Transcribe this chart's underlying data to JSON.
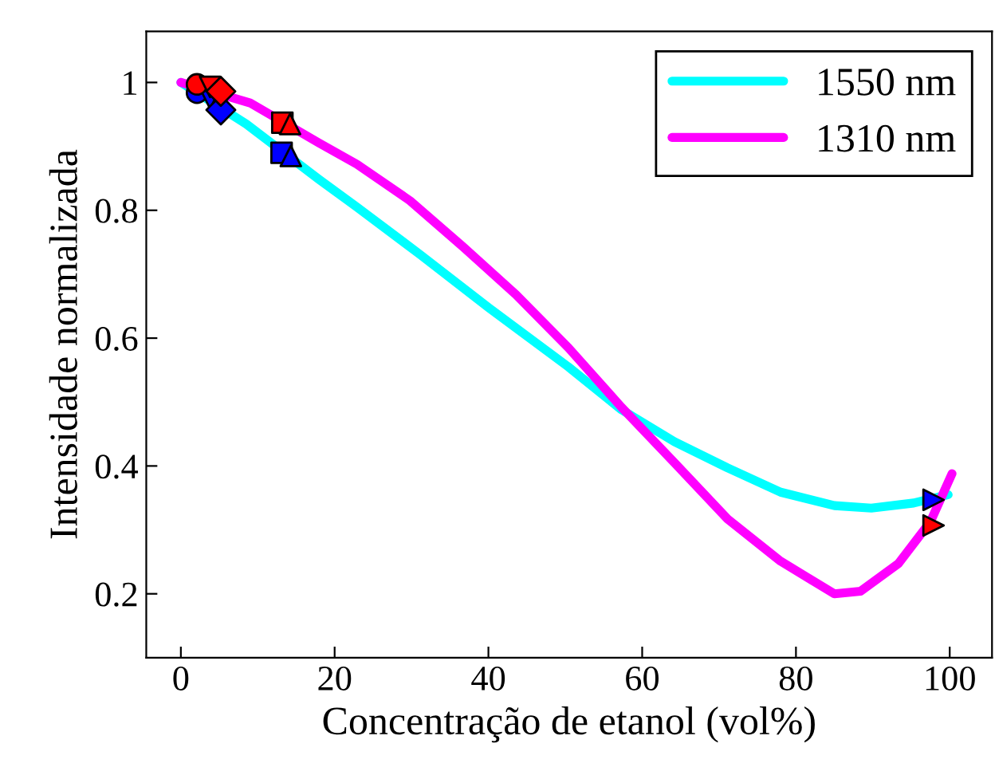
{
  "chart_data": {
    "type": "line",
    "xlabel": "Concentração de etanol (vol%)",
    "ylabel": "Intensidade normalizada",
    "xlim": [
      -4.5,
      105.5
    ],
    "ylim": [
      0.1,
      1.08
    ],
    "xticks": [
      0,
      20,
      40,
      60,
      80,
      100
    ],
    "yticks": [
      0.2,
      0.4,
      0.6,
      0.8,
      1
    ],
    "grid": false,
    "legend": "top right",
    "series": [
      {
        "name": "1550 nm",
        "color": "#00ffff",
        "x": [
          0,
          8.5,
          18,
          22.9,
          31.2,
          40.1,
          50.4,
          57.3,
          64.2,
          71.1,
          78,
          85,
          89.8,
          95.3,
          99.8
        ],
        "values": [
          1.0,
          0.935,
          0.848,
          0.805,
          0.73,
          0.647,
          0.555,
          0.488,
          0.438,
          0.397,
          0.359,
          0.338,
          0.334,
          0.342,
          0.355
        ]
      },
      {
        "name": "1310 nm",
        "color": "#ff00ff",
        "x": [
          0,
          9,
          18,
          22.9,
          29.8,
          36.7,
          43.6,
          50.4,
          57.3,
          64.2,
          71.1,
          78,
          85,
          88.4,
          93.3,
          97.5,
          100.3
        ],
        "values": [
          1.0,
          0.968,
          0.905,
          0.872,
          0.815,
          0.743,
          0.668,
          0.585,
          0.492,
          0.405,
          0.317,
          0.251,
          0.2,
          0.204,
          0.247,
          0.313,
          0.388
        ]
      },
      {
        "type": "scatter",
        "marker": "circle",
        "color": "#0000ff",
        "x": [
          2.1
        ],
        "values": [
          0.984
        ]
      },
      {
        "type": "scatter",
        "marker": "triangle-down",
        "color": "#0000ff",
        "x": [
          3.8
        ],
        "values": [
          0.975
        ]
      },
      {
        "type": "scatter",
        "marker": "diamond",
        "color": "#0000ff",
        "x": [
          5.2
        ],
        "values": [
          0.957
        ]
      },
      {
        "type": "scatter",
        "marker": "square",
        "color": "#0000ff",
        "x": [
          13.1
        ],
        "values": [
          0.89
        ]
      },
      {
        "type": "scatter",
        "marker": "triangle",
        "color": "#0000ff",
        "x": [
          14.3
        ],
        "values": [
          0.885
        ]
      },
      {
        "type": "scatter",
        "marker": "triangle-right",
        "color": "#0000ff",
        "x": [
          97.9
        ],
        "values": [
          0.347
        ]
      },
      {
        "type": "scatter",
        "marker": "circle",
        "color": "#ff0000",
        "x": [
          2.1
        ],
        "values": [
          0.997
        ]
      },
      {
        "type": "scatter",
        "marker": "triangle-down",
        "color": "#ff0000",
        "x": [
          3.8
        ],
        "values": [
          0.993
        ]
      },
      {
        "type": "scatter",
        "marker": "diamond",
        "color": "#ff0000",
        "x": [
          5.2
        ],
        "values": [
          0.986
        ]
      },
      {
        "type": "scatter",
        "marker": "square",
        "color": "#ff0000",
        "x": [
          13.2
        ],
        "values": [
          0.937
        ]
      },
      {
        "type": "scatter",
        "marker": "triangle",
        "color": "#ff0000",
        "x": [
          14.2
        ],
        "values": [
          0.935
        ]
      },
      {
        "type": "scatter",
        "marker": "triangle-right",
        "color": "#ff0000",
        "x": [
          97.9
        ],
        "values": [
          0.307
        ]
      }
    ]
  }
}
